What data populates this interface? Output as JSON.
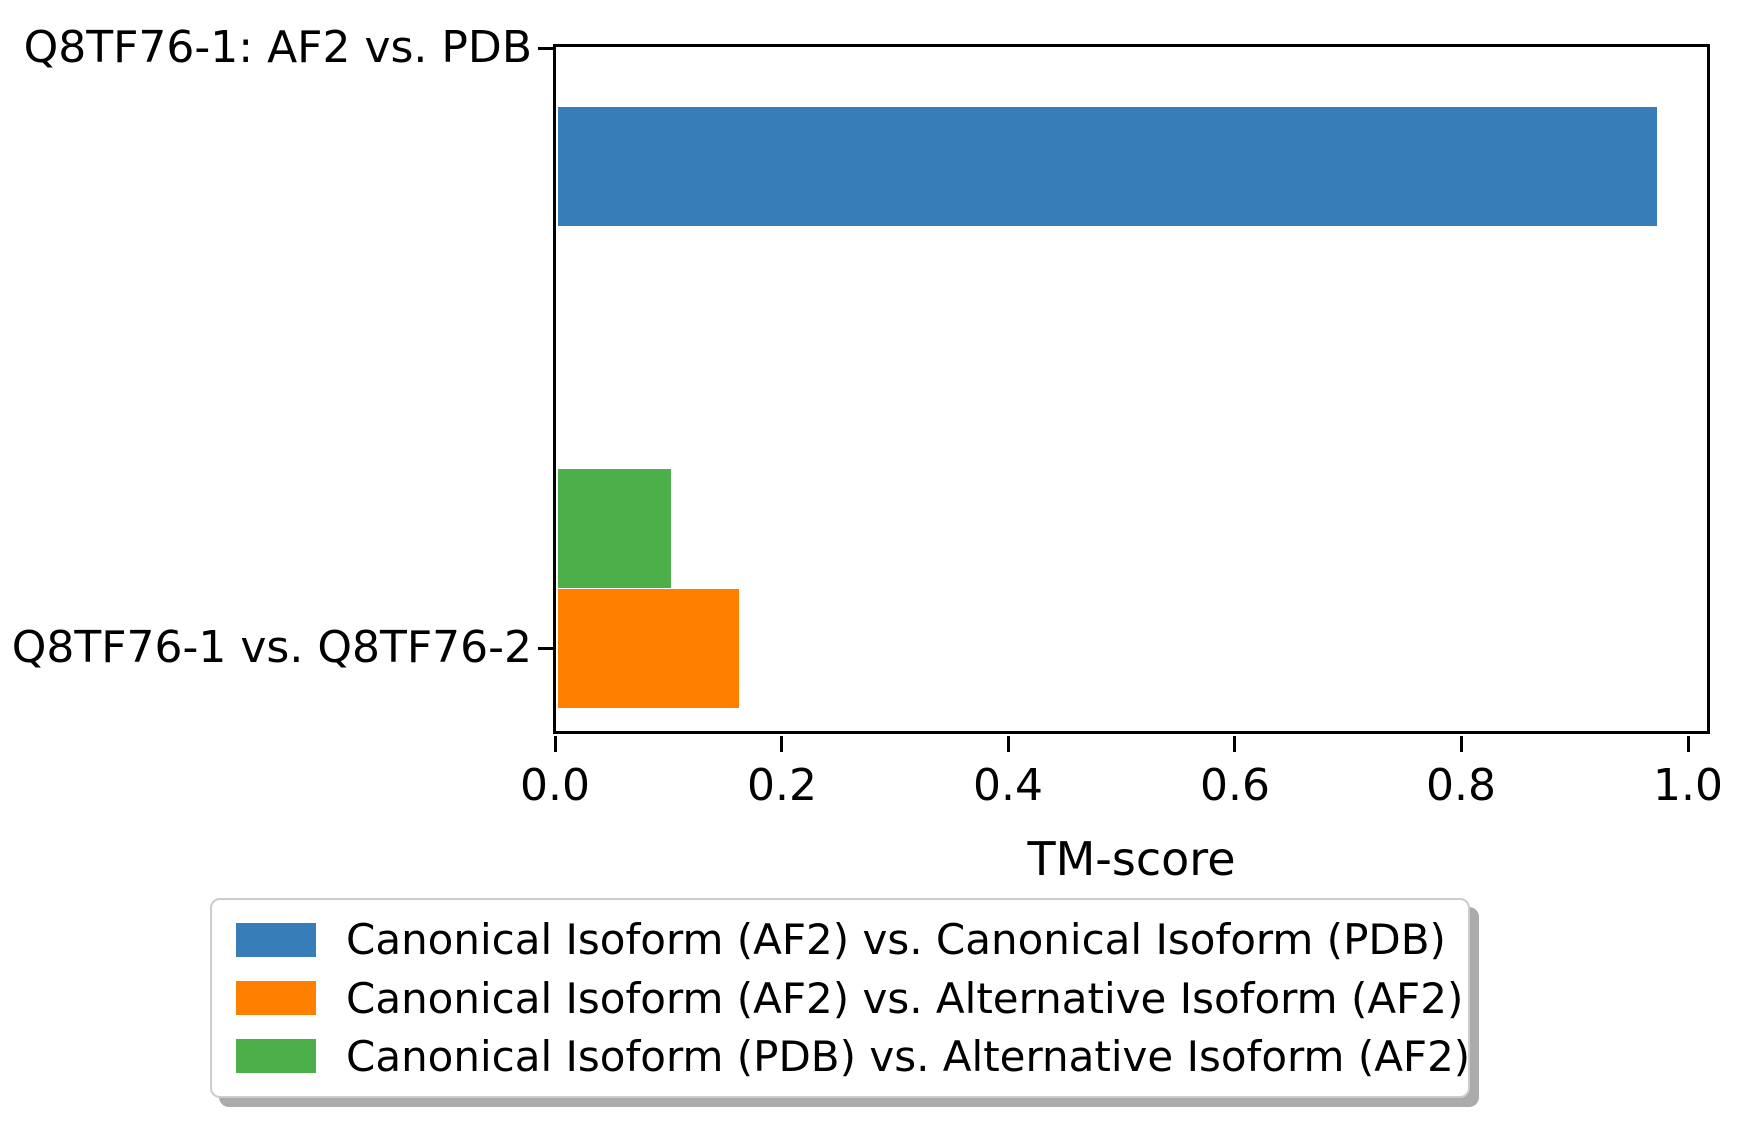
{
  "chart_data": {
    "type": "bar",
    "orientation": "horizontal",
    "title": "",
    "xlabel": "TM-score",
    "ylabel": "",
    "categories": [
      "Q8TF76-1: AF2 vs. PDB",
      "Q8TF76-1 vs. Q8TF76-2"
    ],
    "series": [
      {
        "name": "Canonical Isoform (AF2) vs. Canonical Isoform (PDB)",
        "color": "#377eb8",
        "values": [
          0.97,
          null
        ]
      },
      {
        "name": "Canonical Isoform (AF2) vs. Alternative Isoform (AF2)",
        "color": "#ff7f00",
        "values": [
          null,
          0.16
        ]
      },
      {
        "name": "Canonical Isoform (PDB) vs. Alternative Isoform (AF2)",
        "color": "#4daf4a",
        "values": [
          null,
          0.1
        ]
      }
    ],
    "xlim": [
      0.0,
      1.02
    ],
    "xticks": [
      0.0,
      0.2,
      0.4,
      0.6,
      0.8,
      1.0
    ],
    "xtick_labels": [
      "0.0",
      "0.2",
      "0.4",
      "0.6",
      "0.8",
      "1.0"
    ],
    "grid": false,
    "legend_position": "bottom-left"
  },
  "colors": {
    "background": "#ffffff",
    "spine": "#000000",
    "legend_border": "#cccccc",
    "legend_shadow": "#ababab"
  }
}
